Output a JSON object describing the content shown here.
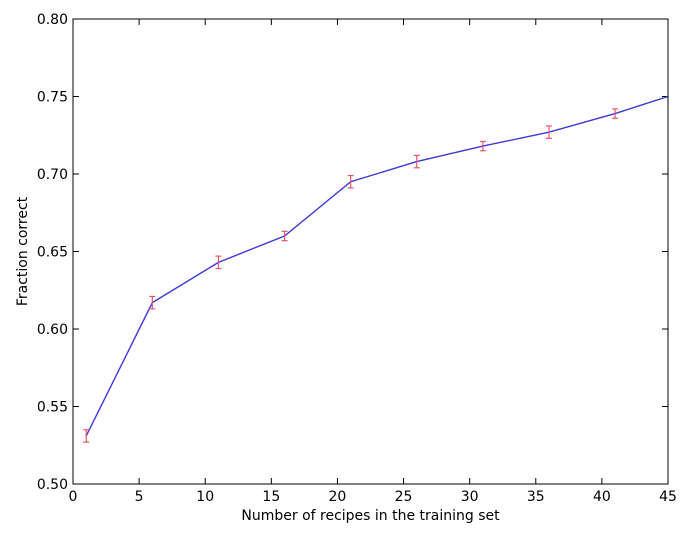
{
  "chart_data": {
    "type": "line",
    "title": "",
    "xlabel": "Number of recipes in the training set",
    "ylabel": "Fraction correct",
    "xlim": [
      0,
      45
    ],
    "ylim": [
      0.5,
      0.8
    ],
    "x_ticks": [
      0,
      5,
      10,
      15,
      20,
      25,
      30,
      35,
      40,
      45
    ],
    "x_tick_labels": [
      "0",
      "5",
      "10",
      "15",
      "20",
      "25",
      "30",
      "35",
      "40",
      "45"
    ],
    "y_ticks": [
      0.5,
      0.55,
      0.6,
      0.65,
      0.7,
      0.75,
      0.8
    ],
    "y_tick_labels": [
      "0.50",
      "0.55",
      "0.60",
      "0.65",
      "0.70",
      "0.75",
      "0.80"
    ],
    "grid": false,
    "legend": "none",
    "series": [
      {
        "name": "",
        "color": "#3a3ad6",
        "errorbar_color": "#e8566e",
        "x": [
          1,
          6,
          11,
          16,
          21,
          26,
          31,
          36,
          41,
          45
        ],
        "y": [
          0.531,
          0.617,
          0.643,
          0.66,
          0.695,
          0.708,
          0.718,
          0.727,
          0.739,
          0.75
        ],
        "yerr": [
          0.004,
          0.004,
          0.004,
          0.003,
          0.004,
          0.004,
          0.003,
          0.004,
          0.003,
          0.0
        ]
      }
    ]
  }
}
